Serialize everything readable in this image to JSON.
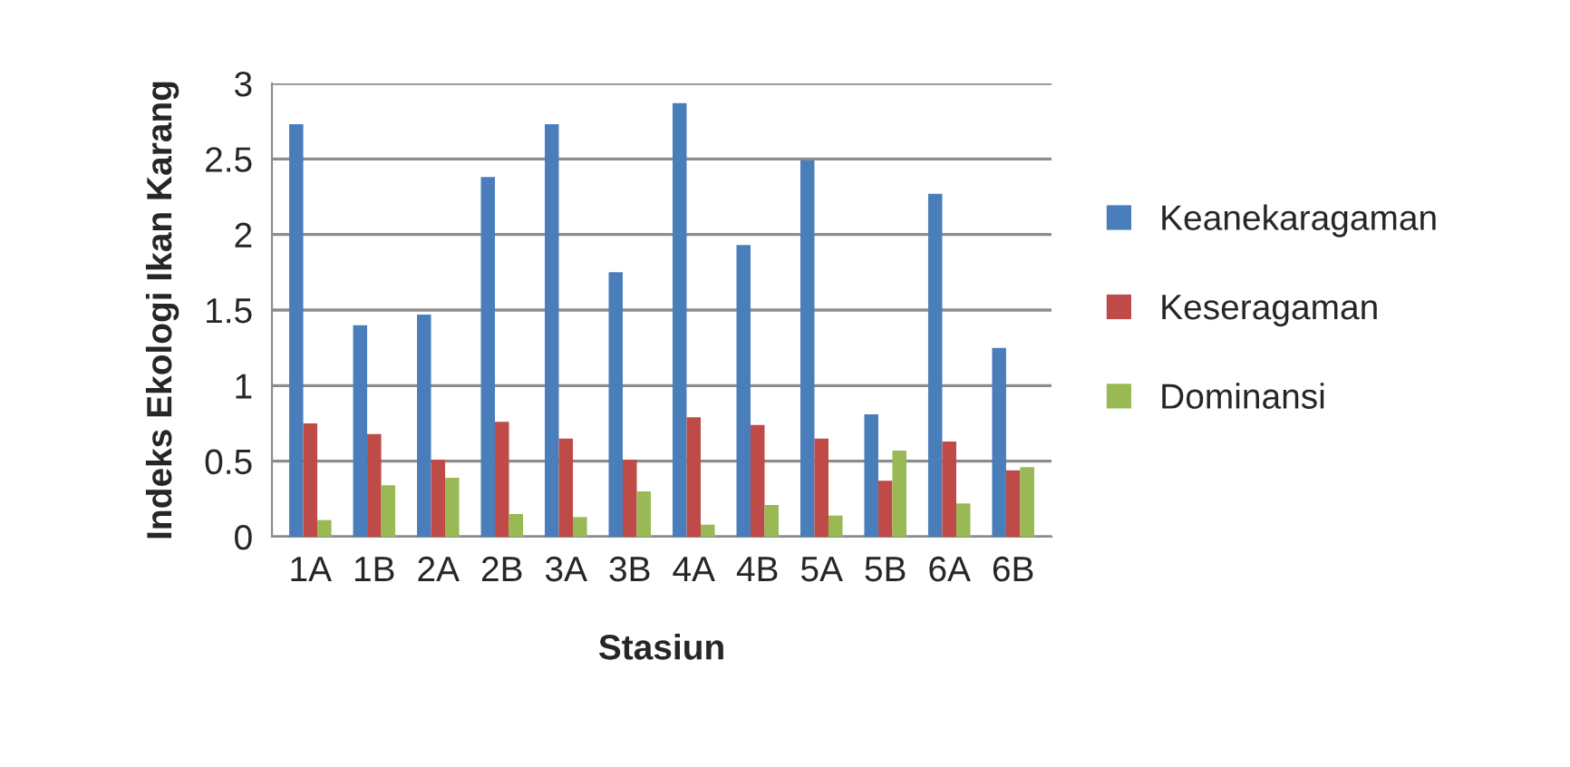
{
  "chart_data": {
    "type": "bar",
    "xlabel": "Stasiun",
    "ylabel": "Indeks Ekologi Ikan Karang",
    "categories": [
      "1A",
      "1B",
      "2A",
      "2B",
      "3A",
      "3B",
      "4A",
      "4B",
      "5A",
      "5B",
      "6A",
      "6B"
    ],
    "series": [
      {
        "name": "Keanekaragaman",
        "color": "#4a7ebb",
        "values": [
          2.73,
          1.4,
          1.47,
          2.38,
          2.73,
          1.75,
          2.87,
          1.93,
          2.49,
          0.81,
          2.27,
          1.25
        ]
      },
      {
        "name": "Keseragaman",
        "color": "#be4b48",
        "values": [
          0.75,
          0.68,
          0.51,
          0.76,
          0.65,
          0.51,
          0.79,
          0.74,
          0.65,
          0.37,
          0.63,
          0.44
        ]
      },
      {
        "name": "Dominansi",
        "color": "#98b954",
        "values": [
          0.11,
          0.34,
          0.39,
          0.15,
          0.13,
          0.3,
          0.08,
          0.21,
          0.14,
          0.57,
          0.22,
          0.46
        ]
      }
    ],
    "ylim": [
      0,
      3
    ],
    "yticks": [
      0,
      0.5,
      1,
      1.5,
      2,
      2.5,
      3
    ],
    "grid": "y",
    "legend": "right"
  }
}
